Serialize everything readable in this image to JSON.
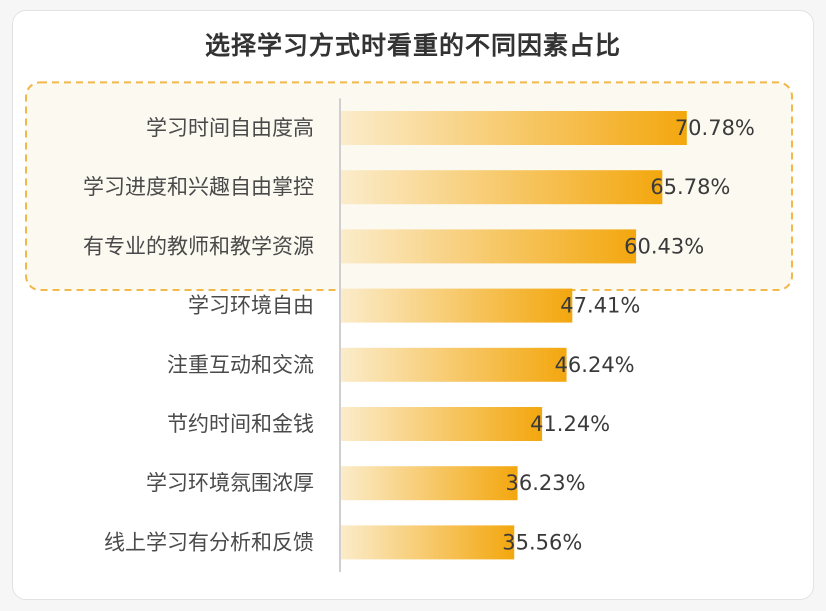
{
  "chart_data": {
    "type": "bar",
    "orientation": "horizontal",
    "title": "选择学习方式时看重的不同因素占比",
    "categories": [
      "学习时间自由度高",
      "学习进度和兴趣自由掌控",
      "有专业的教师和教学资源",
      "学习环境自由",
      "注重互动和交流",
      "节约时间和金钱",
      "学习环境氛围浓厚",
      "线上学习有分析和反馈"
    ],
    "values": [
      70.78,
      65.78,
      60.43,
      47.41,
      46.24,
      41.24,
      36.23,
      35.56
    ],
    "value_labels": [
      "70.78%",
      "65.78%",
      "60.43%",
      "47.41%",
      "46.24%",
      "41.24%",
      "36.23%",
      "35.56%"
    ],
    "unit": "%",
    "highlighted_count": 3,
    "grid": false,
    "legend": "none",
    "xlim": [
      0,
      100
    ],
    "colors": {
      "bar_start": "#fbeccb",
      "bar_end": "#f3a70e",
      "highlight_border": "#f1b84a",
      "highlight_fill": "#fcf9f1",
      "axis": "#cfcfcf"
    }
  }
}
